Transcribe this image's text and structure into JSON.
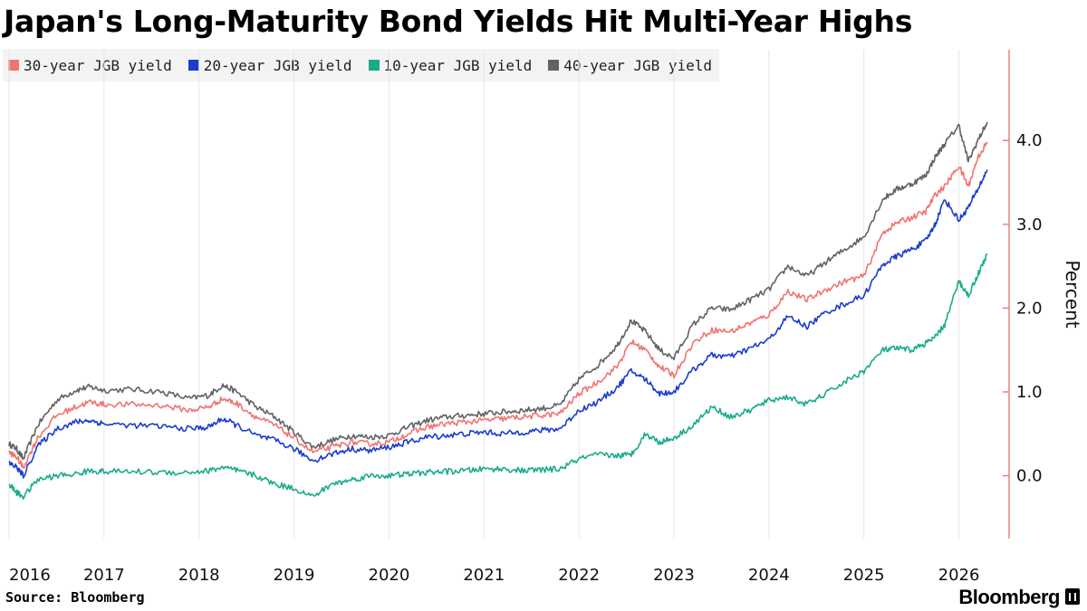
{
  "title": "Japan's Long-Maturity Bond Yields Hit Multi-Year Highs",
  "source": "Source: Bloomberg",
  "brand": "Bloomberg",
  "chart_data": {
    "type": "line",
    "title": "Japan's Long-Maturity Bond Yields Hit Multi-Year Highs",
    "ylabel": "Percent",
    "xlabel": "",
    "ylim": [
      -0.75,
      4.65
    ],
    "xlim": [
      2016.0,
      2026.3
    ],
    "yticks": [
      0.0,
      1.0,
      2.0,
      3.0,
      4.0
    ],
    "ytick_labels": [
      "0.0",
      "1.0",
      "2.0",
      "3.0",
      "4.0"
    ],
    "xticks": [
      2016,
      2017,
      2018,
      2019,
      2020,
      2021,
      2022,
      2023,
      2024,
      2025,
      2026
    ],
    "xtick_labels": [
      "2016",
      "2017",
      "2018",
      "2019",
      "2020",
      "2021",
      "2022",
      "2023",
      "2024",
      "2025",
      "2026"
    ],
    "y_axis_position": "right",
    "grid": "vertical",
    "legend_position": "top-left",
    "series": [
      {
        "name": "30-year JGB yield",
        "color": "#f07470",
        "x": [
          2016.0,
          2016.08,
          2016.15,
          2016.3,
          2016.5,
          2016.7,
          2016.85,
          2017.0,
          2017.3,
          2017.6,
          2017.9,
          2018.1,
          2018.25,
          2018.4,
          2018.6,
          2018.8,
          2019.0,
          2019.2,
          2019.4,
          2019.6,
          2019.8,
          2020.0,
          2020.2,
          2020.4,
          2020.6,
          2020.8,
          2021.0,
          2021.2,
          2021.4,
          2021.6,
          2021.8,
          2022.0,
          2022.2,
          2022.4,
          2022.55,
          2022.7,
          2022.85,
          2023.0,
          2023.2,
          2023.4,
          2023.6,
          2023.8,
          2024.0,
          2024.2,
          2024.4,
          2024.6,
          2024.8,
          2025.0,
          2025.2,
          2025.35,
          2025.5,
          2025.65,
          2025.75,
          2025.85,
          2026.0,
          2026.1,
          2026.2,
          2026.3
        ],
        "values": [
          0.28,
          0.22,
          0.1,
          0.45,
          0.72,
          0.82,
          0.88,
          0.85,
          0.85,
          0.84,
          0.78,
          0.82,
          0.92,
          0.86,
          0.7,
          0.6,
          0.45,
          0.28,
          0.34,
          0.4,
          0.38,
          0.4,
          0.5,
          0.58,
          0.62,
          0.64,
          0.66,
          0.68,
          0.7,
          0.72,
          0.74,
          0.98,
          1.12,
          1.3,
          1.6,
          1.5,
          1.3,
          1.2,
          1.58,
          1.74,
          1.72,
          1.82,
          1.92,
          2.2,
          2.1,
          2.22,
          2.32,
          2.38,
          2.9,
          3.02,
          3.08,
          3.15,
          3.35,
          3.45,
          3.7,
          3.45,
          3.8,
          3.98
        ]
      },
      {
        "name": "20-year JGB yield",
        "color": "#1a3ccf",
        "x": [
          2016.0,
          2016.08,
          2016.15,
          2016.3,
          2016.5,
          2016.7,
          2016.85,
          2017.0,
          2017.3,
          2017.6,
          2017.9,
          2018.1,
          2018.25,
          2018.4,
          2018.6,
          2018.8,
          2019.0,
          2019.2,
          2019.4,
          2019.6,
          2019.8,
          2020.0,
          2020.2,
          2020.4,
          2020.6,
          2020.8,
          2021.0,
          2021.2,
          2021.4,
          2021.6,
          2021.8,
          2022.0,
          2022.2,
          2022.4,
          2022.55,
          2022.7,
          2022.85,
          2023.0,
          2023.2,
          2023.4,
          2023.6,
          2023.8,
          2024.0,
          2024.2,
          2024.4,
          2024.6,
          2024.8,
          2025.0,
          2025.2,
          2025.35,
          2025.5,
          2025.65,
          2025.75,
          2025.85,
          2026.0,
          2026.1,
          2026.2,
          2026.3
        ],
        "values": [
          0.15,
          0.1,
          0.0,
          0.35,
          0.56,
          0.64,
          0.66,
          0.62,
          0.6,
          0.59,
          0.56,
          0.58,
          0.68,
          0.6,
          0.48,
          0.42,
          0.32,
          0.18,
          0.26,
          0.32,
          0.3,
          0.34,
          0.4,
          0.46,
          0.48,
          0.5,
          0.52,
          0.5,
          0.52,
          0.54,
          0.56,
          0.78,
          0.88,
          1.05,
          1.25,
          1.15,
          0.98,
          1.0,
          1.26,
          1.44,
          1.42,
          1.52,
          1.62,
          1.9,
          1.78,
          1.95,
          2.05,
          2.15,
          2.52,
          2.62,
          2.7,
          2.8,
          3.0,
          3.3,
          3.05,
          3.2,
          3.42,
          3.65
        ]
      },
      {
        "name": "10-year JGB yield",
        "color": "#1aab8a",
        "x": [
          2016.0,
          2016.08,
          2016.15,
          2016.3,
          2016.5,
          2016.7,
          2016.85,
          2017.0,
          2017.3,
          2017.6,
          2017.9,
          2018.1,
          2018.25,
          2018.4,
          2018.6,
          2018.8,
          2019.0,
          2019.2,
          2019.4,
          2019.6,
          2019.8,
          2020.0,
          2020.2,
          2020.4,
          2020.6,
          2020.8,
          2021.0,
          2021.2,
          2021.4,
          2021.6,
          2021.8,
          2022.0,
          2022.2,
          2022.4,
          2022.55,
          2022.7,
          2022.85,
          2023.0,
          2023.2,
          2023.4,
          2023.6,
          2023.8,
          2024.0,
          2024.2,
          2024.4,
          2024.6,
          2024.8,
          2025.0,
          2025.2,
          2025.35,
          2025.5,
          2025.65,
          2025.75,
          2025.85,
          2026.0,
          2026.1,
          2026.2,
          2026.3
        ],
        "values": [
          -0.1,
          -0.2,
          -0.25,
          -0.05,
          0.0,
          0.02,
          0.06,
          0.05,
          0.05,
          0.04,
          0.04,
          0.06,
          0.1,
          0.06,
          0.0,
          -0.1,
          -0.15,
          -0.25,
          -0.1,
          -0.05,
          0.0,
          0.0,
          0.02,
          0.04,
          0.05,
          0.06,
          0.08,
          0.08,
          0.06,
          0.07,
          0.08,
          0.2,
          0.25,
          0.24,
          0.25,
          0.5,
          0.4,
          0.45,
          0.6,
          0.82,
          0.7,
          0.78,
          0.9,
          0.94,
          0.85,
          0.98,
          1.12,
          1.25,
          1.5,
          1.52,
          1.5,
          1.58,
          1.65,
          1.8,
          2.32,
          2.15,
          2.4,
          2.65
        ]
      },
      {
        "name": "40-year JGB yield",
        "color": "#626262",
        "x": [
          2016.0,
          2016.08,
          2016.15,
          2016.3,
          2016.5,
          2016.7,
          2016.85,
          2017.0,
          2017.3,
          2017.6,
          2017.9,
          2018.1,
          2018.25,
          2018.4,
          2018.6,
          2018.8,
          2019.0,
          2019.2,
          2019.4,
          2019.6,
          2019.8,
          2020.0,
          2020.2,
          2020.4,
          2020.6,
          2020.8,
          2021.0,
          2021.2,
          2021.4,
          2021.6,
          2021.8,
          2022.0,
          2022.2,
          2022.4,
          2022.55,
          2022.7,
          2022.85,
          2023.0,
          2023.2,
          2023.4,
          2023.6,
          2023.8,
          2024.0,
          2024.2,
          2024.4,
          2024.6,
          2024.8,
          2025.0,
          2025.2,
          2025.35,
          2025.5,
          2025.65,
          2025.75,
          2025.85,
          2026.0,
          2026.1,
          2026.2,
          2026.3
        ],
        "values": [
          0.38,
          0.32,
          0.2,
          0.6,
          0.9,
          1.02,
          1.06,
          1.02,
          1.03,
          1.0,
          0.92,
          0.96,
          1.08,
          1.0,
          0.82,
          0.7,
          0.52,
          0.34,
          0.42,
          0.48,
          0.46,
          0.48,
          0.58,
          0.66,
          0.7,
          0.72,
          0.74,
          0.76,
          0.78,
          0.8,
          0.84,
          1.15,
          1.32,
          1.55,
          1.85,
          1.72,
          1.5,
          1.4,
          1.8,
          2.0,
          1.98,
          2.1,
          2.22,
          2.5,
          2.38,
          2.55,
          2.7,
          2.85,
          3.3,
          3.42,
          3.48,
          3.58,
          3.8,
          3.96,
          4.18,
          3.75,
          4.0,
          4.22
        ]
      }
    ]
  }
}
